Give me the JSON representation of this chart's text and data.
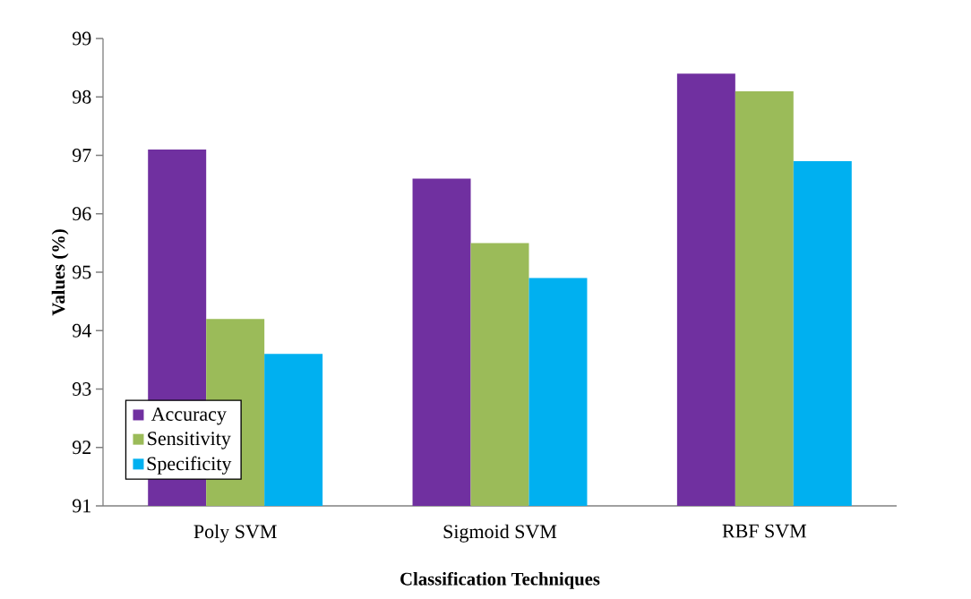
{
  "chart_data": {
    "type": "bar",
    "xlabel": "Classification Techniques",
    "ylabel": "Values (%)",
    "categories": [
      "Poly SVM",
      "Sigmoid SVM",
      "RBF SVM"
    ],
    "series": [
      {
        "name": "Accuracy",
        "color": "#7030a0",
        "values": [
          97.1,
          96.6,
          98.4
        ]
      },
      {
        "name": "Sensitivity",
        "color": "#9bbb59",
        "values": [
          94.2,
          95.5,
          98.1
        ]
      },
      {
        "name": "Specificity",
        "color": "#00b0f0",
        "values": [
          93.6,
          94.9,
          96.9
        ]
      }
    ],
    "ylim": [
      91,
      99
    ],
    "yticks": [
      91,
      92,
      93,
      94,
      95,
      96,
      97,
      98,
      99
    ],
    "grid": false,
    "legend": "bottom left"
  }
}
